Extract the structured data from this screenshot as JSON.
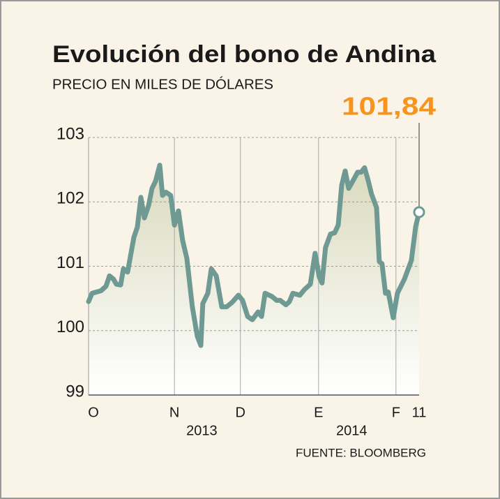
{
  "chart_data": {
    "type": "line",
    "title": "Evolución del bono de Andina",
    "subtitle": "PRECIO EN MILES DE DÓLARES",
    "source": "FUENTE: BLOOMBERG",
    "last_label": "101,84",
    "x": [
      0,
      1.4,
      5,
      7,
      8.4,
      10,
      11.2,
      12.9,
      14,
      15.7,
      18.2,
      19.6,
      21,
      22.4,
      24.1,
      25.5,
      26.9,
      28.6,
      29.7,
      31.1,
      33,
      34.5,
      36.1,
      37.8,
      39.5,
      41.7,
      43.7,
      45.1,
      45.9,
      47.9,
      49.3,
      51.3,
      53.5,
      55.5,
      57.7,
      60.2,
      61.9,
      63.9,
      65.8,
      68.1,
      69.5,
      70.9,
      73.7,
      75.6,
      77,
      79.3,
      80.7,
      82.1,
      84.9,
      86.8,
      89.1,
      91,
      92.7,
      93.8,
      95.2,
      97.2,
      98.9,
      100.3,
      101.7,
      103.1,
      104.5,
      106.4,
      108.1,
      109.5,
      110.9,
      112.3,
      113.7,
      115.7,
      116.8,
      117.9,
      119.3,
      120.4,
      122.4,
      124.1,
      126.9,
      129.7,
      131.4,
      132.8
    ],
    "series": [
      {
        "name": "Andina",
        "color": "#6f9a94",
        "values": [
          100.45,
          100.58,
          100.62,
          100.69,
          100.85,
          100.8,
          100.72,
          100.71,
          100.96,
          100.91,
          101.45,
          101.61,
          102.07,
          101.75,
          101.94,
          102.21,
          102.32,
          102.57,
          102.1,
          102.15,
          102.1,
          101.64,
          101.86,
          101.4,
          101.12,
          100.37,
          99.91,
          99.77,
          100.42,
          100.58,
          100.96,
          100.85,
          100.37,
          100.37,
          100.44,
          100.55,
          100.47,
          100.22,
          100.17,
          100.29,
          100.22,
          100.58,
          100.53,
          100.47,
          100.47,
          100.4,
          100.45,
          100.58,
          100.55,
          100.64,
          100.72,
          101.2,
          100.83,
          100.74,
          101.29,
          101.5,
          101.52,
          101.64,
          102.26,
          102.48,
          102.21,
          102.34,
          102.46,
          102.46,
          102.53,
          102.34,
          102.12,
          101.91,
          101.07,
          101.04,
          100.58,
          100.6,
          100.2,
          100.58,
          100.8,
          101.09,
          101.61,
          101.84
        ]
      }
    ],
    "xlim": [
      0,
      132.8
    ],
    "xticks": [
      {
        "value": 0,
        "label": "O"
      },
      {
        "value": 34.5,
        "label": "N"
      },
      {
        "value": 61,
        "label": "D"
      },
      {
        "value": 92.4,
        "label": "E"
      },
      {
        "value": 123.5,
        "label": "F"
      },
      {
        "value": 132.8,
        "label": "11"
      }
    ],
    "x_group_labels": [
      "2013",
      "2014"
    ],
    "ylim": [
      99,
      103
    ],
    "yticks": [
      99,
      100,
      101,
      102,
      103
    ],
    "grid": true
  }
}
